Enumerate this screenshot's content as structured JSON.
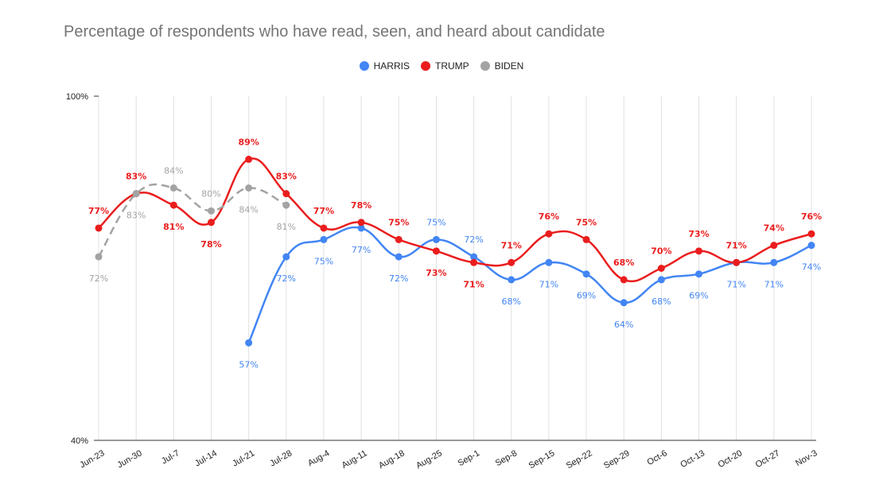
{
  "chart_data": {
    "type": "line",
    "title": "Percentage of respondents who have read, seen, and heard about candidate",
    "xlabel": "",
    "ylabel": "",
    "ylim": [
      40,
      100
    ],
    "y_ticks": [
      "40%",
      "100%"
    ],
    "grid": "vertical",
    "legend_position": "top",
    "categories": [
      "Jun-23",
      "Jun-30",
      "Jul-7",
      "Jul-14",
      "Jul-21",
      "Jul-28",
      "Aug-4",
      "Aug-11",
      "Aug-18",
      "Aug-25",
      "Sep-1",
      "Sep-8",
      "Sep-15",
      "Sep-22",
      "Sep-29",
      "Oct-6",
      "Oct-13",
      "Oct-20",
      "Oct-27",
      "Nov-3"
    ],
    "series": [
      {
        "name": "HARRIS",
        "color": "#4285f4",
        "dashed": false,
        "values": [
          null,
          null,
          null,
          null,
          57,
          72,
          75,
          77,
          72,
          75,
          72,
          68,
          71,
          69,
          64,
          68,
          69,
          71,
          71,
          74
        ],
        "labels": [
          "",
          "",
          "",
          "",
          "57%",
          "72%",
          "75%",
          "77%",
          "72%",
          "75%",
          "72%",
          "68%",
          "71%",
          "69%",
          "64%",
          "68%",
          "69%",
          "71%",
          "71%",
          "74%"
        ],
        "label_pos": [
          "",
          "",
          "",
          "",
          "below",
          "below",
          "below",
          "below",
          "below",
          "above",
          "above",
          "below",
          "below",
          "below",
          "below",
          "below",
          "below",
          "below",
          "below",
          "below"
        ]
      },
      {
        "name": "TRUMP",
        "color": "#ea1d1d",
        "dashed": false,
        "values": [
          77,
          83,
          81,
          78,
          89,
          83,
          77,
          78,
          75,
          73,
          71,
          71,
          76,
          75,
          68,
          70,
          73,
          71,
          74,
          76
        ],
        "labels": [
          "77%",
          "83%",
          "81%",
          "78%",
          "89%",
          "83%",
          "77%",
          "78%",
          "75%",
          "73%",
          "71%",
          "71%",
          "76%",
          "75%",
          "68%",
          "70%",
          "73%",
          "71%",
          "74%",
          "76%"
        ],
        "label_pos": [
          "above",
          "above",
          "below",
          "below",
          "above",
          "above",
          "above",
          "above",
          "above",
          "below",
          "below",
          "above",
          "above",
          "above",
          "above",
          "above",
          "above",
          "above",
          "above",
          "above"
        ]
      },
      {
        "name": "BIDEN",
        "color": "#a3a3a3",
        "dashed": true,
        "values": [
          72,
          83,
          84,
          80,
          84,
          81,
          null,
          null,
          null,
          null,
          null,
          null,
          null,
          null,
          null,
          null,
          null,
          null,
          null,
          null
        ],
        "labels": [
          "72%",
          "83%",
          "84%",
          "80%",
          "84%",
          "81%",
          "",
          "",
          "",
          "",
          "",
          "",
          "",
          "",
          "",
          "",
          "",
          "",
          "",
          ""
        ],
        "label_pos": [
          "below",
          "below",
          "above",
          "above",
          "below",
          "below",
          "",
          "",
          "",
          "",
          "",
          "",
          "",
          "",
          "",
          "",
          "",
          "",
          "",
          ""
        ]
      }
    ]
  }
}
